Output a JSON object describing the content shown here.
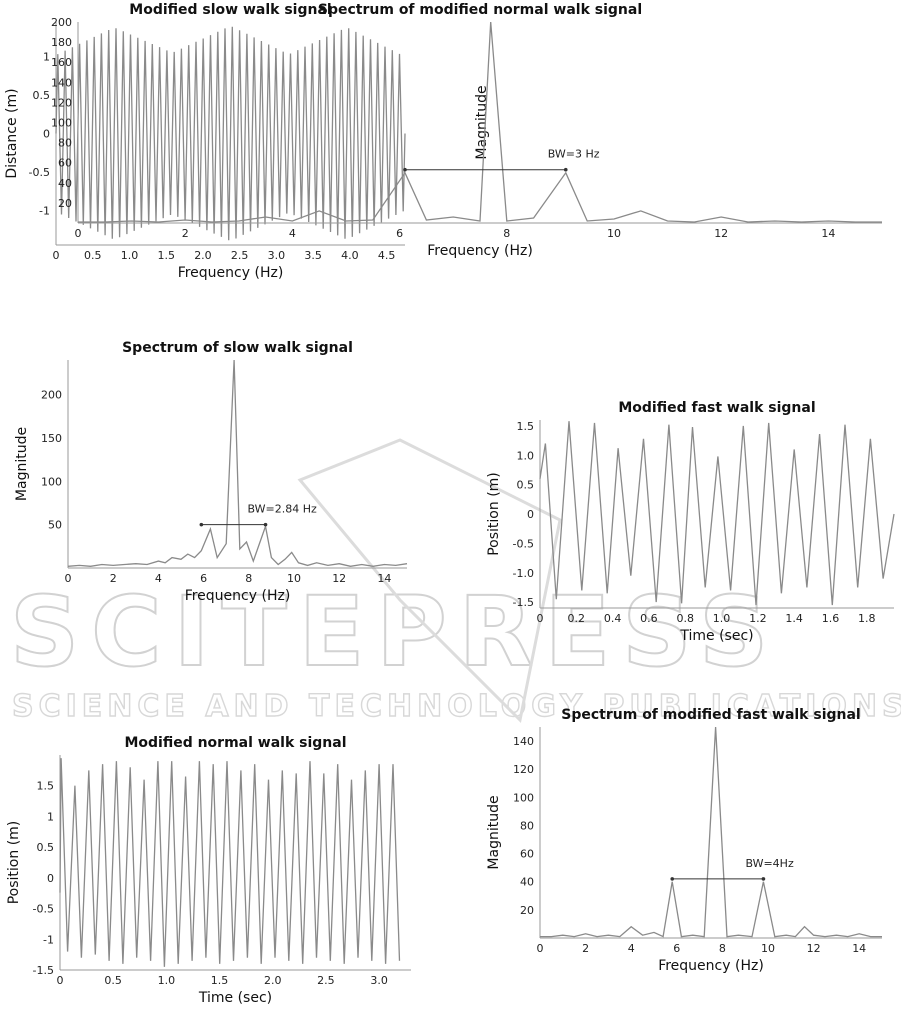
{
  "watermark": {
    "brand": "SCITEPRESS",
    "tagline": "SCIENCE AND TECHNOLOGY PUBLICATIONS"
  },
  "chart_data": [
    {
      "id": "slow_walk_signal",
      "type": "line",
      "title": "Modified slow walk signal",
      "xlabel": "Frequency (Hz)",
      "ylabel": "Distance (m)",
      "xlim": [
        0,
        4.75
      ],
      "ylim": [
        -1.45,
        1.45
      ],
      "xticks": [
        0,
        0.5,
        1.0,
        1.5,
        2.0,
        2.5,
        3.0,
        3.5,
        4.0,
        4.5
      ],
      "xtick_labels": [
        "0",
        "0.5",
        "1.0",
        "1.5",
        "2.0",
        "2.5",
        "3.0",
        "3.5",
        "4.0",
        "4.5"
      ],
      "yticks": [
        1,
        0.5,
        0,
        -0.5,
        -1
      ],
      "ytick_labels": [
        "1",
        "0.5",
        "0",
        "-0.5",
        "-1"
      ],
      "series": [
        {
          "x_start": 0,
          "x_end": 4.75,
          "cycles": 48,
          "amplitude_peaks": [
            1.02,
            1.38,
            1.05,
            1.4,
            1.03,
            1.38,
            1.0
          ],
          "mean_amplitude": 1.2
        }
      ]
    },
    {
      "id": "normal_walk_spectrum",
      "type": "line",
      "title": "Spectrum of modified normal walk signal",
      "xlabel": "Frequency (Hz)",
      "ylabel": "Magnitude",
      "xlim": [
        0,
        15
      ],
      "ylim": [
        0,
        200
      ],
      "xticks": [
        0,
        2,
        4,
        6,
        8,
        10,
        12,
        14
      ],
      "xtick_labels": [
        "0",
        "2",
        "4",
        "6",
        "8",
        "10",
        "12",
        "14"
      ],
      "yticks": [
        20,
        40,
        60,
        80,
        100,
        120,
        140,
        160,
        180,
        200
      ],
      "ytick_labels": [
        "20",
        "40",
        "60",
        "80",
        "100",
        "120",
        "140",
        "160",
        "180",
        "200"
      ],
      "annotation": {
        "text": "BW=3 Hz",
        "y": 53,
        "x0": 6.1,
        "x1": 9.1
      },
      "series": [
        {
          "x": [
            0,
            0.5,
            1,
            1.5,
            2,
            2.5,
            3,
            3.5,
            4,
            4.5,
            5,
            5.5,
            6.1,
            6.5,
            7,
            7.5,
            7.7,
            8,
            8.5,
            9.1,
            9.5,
            10,
            10.5,
            11,
            11.5,
            12,
            12.5,
            13,
            13.5,
            14,
            14.5,
            15
          ],
          "y": [
            1,
            1,
            2,
            1,
            3,
            1,
            2,
            6,
            2,
            12,
            2,
            3,
            50,
            3,
            6,
            2,
            200,
            2,
            5,
            50,
            2,
            4,
            12,
            2,
            1,
            6,
            1,
            2,
            1,
            2,
            1,
            1
          ]
        }
      ]
    },
    {
      "id": "slow_walk_spectrum",
      "type": "line",
      "title": "Spectrum of slow walk signal",
      "xlabel": "Frequency (Hz)",
      "ylabel": "Magnitude",
      "xlim": [
        0,
        15
      ],
      "ylim": [
        0,
        240
      ],
      "xticks": [
        0,
        2,
        4,
        6,
        8,
        10,
        12,
        14
      ],
      "xtick_labels": [
        "0",
        "2",
        "4",
        "6",
        "8",
        "10",
        "12",
        "14"
      ],
      "yticks": [
        50,
        100,
        150,
        200
      ],
      "ytick_labels": [
        "50",
        "100",
        "150",
        "200"
      ],
      "annotation": {
        "text": "BW=2.84 Hz",
        "y": 50,
        "x0": 5.9,
        "x1": 8.74
      },
      "series": [
        {
          "x": [
            0,
            0.5,
            1,
            1.5,
            2,
            2.5,
            3,
            3.5,
            4,
            4.3,
            4.6,
            5,
            5.3,
            5.6,
            5.9,
            6.3,
            6.6,
            7.0,
            7.35,
            7.6,
            7.9,
            8.2,
            8.74,
            9.0,
            9.3,
            9.6,
            9.9,
            10.2,
            10.6,
            11,
            11.5,
            12,
            12.5,
            13,
            13.5,
            14,
            14.5,
            15
          ],
          "y": [
            2,
            3,
            2,
            4,
            3,
            4,
            5,
            4,
            8,
            6,
            12,
            10,
            16,
            12,
            20,
            45,
            12,
            28,
            240,
            22,
            30,
            8,
            48,
            12,
            4,
            10,
            18,
            6,
            3,
            6,
            3,
            5,
            2,
            4,
            2,
            4,
            3,
            5
          ]
        }
      ]
    },
    {
      "id": "fast_walk_signal",
      "type": "line",
      "title": "Modified fast walk signal",
      "xlabel": "Time (sec)",
      "ylabel": "Position (m)",
      "xlim": [
        0,
        1.95
      ],
      "ylim": [
        -1.6,
        1.6
      ],
      "xticks": [
        0,
        0.2,
        0.4,
        0.6,
        0.8,
        1.0,
        1.2,
        1.4,
        1.6,
        1.8
      ],
      "xtick_labels": [
        "0",
        "0.2",
        "0.4",
        "0.6",
        "0.8",
        "1.0",
        "1.2",
        "1.4",
        "1.6",
        "1.8"
      ],
      "yticks": [
        1.5,
        1.0,
        0.5,
        0,
        -0.5,
        -1.0,
        -1.5
      ],
      "ytick_labels": [
        "1.5",
        "1.0",
        "0.5",
        "0",
        "-0.5",
        "-1.0",
        "-1.5"
      ],
      "series": [
        {
          "x": [
            0,
            0.03,
            0.09,
            0.16,
            0.23,
            0.3,
            0.37,
            0.43,
            0.5,
            0.57,
            0.64,
            0.71,
            0.78,
            0.84,
            0.91,
            0.98,
            1.05,
            1.12,
            1.19,
            1.26,
            1.33,
            1.4,
            1.47,
            1.54,
            1.61,
            1.68,
            1.75,
            1.82,
            1.89,
            1.95
          ],
          "y": [
            0.6,
            1.2,
            -1.45,
            1.58,
            -1.3,
            1.55,
            -1.35,
            1.12,
            -1.05,
            1.28,
            -1.5,
            1.52,
            -1.52,
            1.48,
            -1.25,
            0.98,
            -1.3,
            1.5,
            -1.55,
            1.55,
            -1.35,
            1.1,
            -1.25,
            1.36,
            -1.55,
            1.52,
            -1.25,
            1.28,
            -1.1,
            0.0
          ]
        }
      ]
    },
    {
      "id": "fast_walk_spectrum",
      "type": "line",
      "title": "Spectrum of modified fast walk signal",
      "xlabel": "Frequency (Hz)",
      "ylabel": "Magnitude",
      "xlim": [
        0,
        15
      ],
      "ylim": [
        0,
        150
      ],
      "xticks": [
        0,
        2,
        4,
        6,
        8,
        10,
        12,
        14
      ],
      "xtick_labels": [
        "0",
        "2",
        "4",
        "6",
        "8",
        "10",
        "12",
        "14"
      ],
      "yticks": [
        20,
        40,
        60,
        80,
        100,
        120,
        140
      ],
      "ytick_labels": [
        "20",
        "40",
        "60",
        "80",
        "100",
        "120",
        "140"
      ],
      "annotation": {
        "text": "BW=4Hz",
        "y": 42,
        "x0": 5.8,
        "x1": 9.8
      },
      "series": [
        {
          "x": [
            0,
            0.5,
            1,
            1.5,
            2,
            2.5,
            3,
            3.5,
            4,
            4.5,
            5,
            5.4,
            5.8,
            6.2,
            6.7,
            7.2,
            7.7,
            8.2,
            8.7,
            9.3,
            9.8,
            10.3,
            10.8,
            11.2,
            11.6,
            12,
            12.5,
            13,
            13.5,
            14,
            14.5,
            15
          ],
          "y": [
            1,
            1,
            2,
            1,
            3,
            1,
            2,
            1,
            8,
            2,
            4,
            1,
            40,
            1,
            2,
            1,
            150,
            1,
            2,
            1,
            40,
            1,
            2,
            1,
            8,
            2,
            1,
            2,
            1,
            3,
            1,
            1
          ]
        }
      ]
    },
    {
      "id": "normal_walk_signal",
      "type": "line",
      "title": "Modified normal walk signal",
      "xlabel": "Time (sec)",
      "ylabel": "Position (m)",
      "xlim": [
        0,
        3.3
      ],
      "ylim": [
        -1.5,
        2.0
      ],
      "xticks": [
        0,
        0.5,
        1.0,
        1.5,
        2.0,
        2.5,
        3.0
      ],
      "xtick_labels": [
        "0",
        "0.5",
        "1.0",
        "1.5",
        "2.0",
        "2.5",
        "3.0"
      ],
      "yticks": [
        1.5,
        1,
        0.5,
        0,
        -0.5,
        -1,
        -1.5
      ],
      "ytick_labels": [
        "1.5",
        "1",
        "0.5",
        "0",
        "-0.5",
        "-1",
        "-1.5"
      ],
      "series": [
        {
          "x_start": 0,
          "x_end": 3.25,
          "cycles": 25,
          "peaks": [
            1.95,
            1.5,
            1.75,
            1.85,
            1.9,
            1.8,
            1.6,
            1.9,
            1.9,
            1.65,
            1.9,
            1.85,
            1.9,
            1.75,
            1.85,
            1.6,
            1.75,
            1.7,
            1.9,
            1.7,
            1.85,
            1.6,
            1.75,
            1.85,
            1.85
          ],
          "troughs": [
            -1.2,
            -1.3,
            -1.25,
            -1.35,
            -1.4,
            -1.3,
            -1.35,
            -1.45,
            -1.4,
            -1.35,
            -1.3,
            -1.4,
            -1.35,
            -1.3,
            -1.4,
            -1.3,
            -1.35,
            -1.4,
            -1.3,
            -1.35,
            -1.4,
            -1.3,
            -1.35,
            -1.4,
            -1.35
          ]
        }
      ]
    }
  ]
}
